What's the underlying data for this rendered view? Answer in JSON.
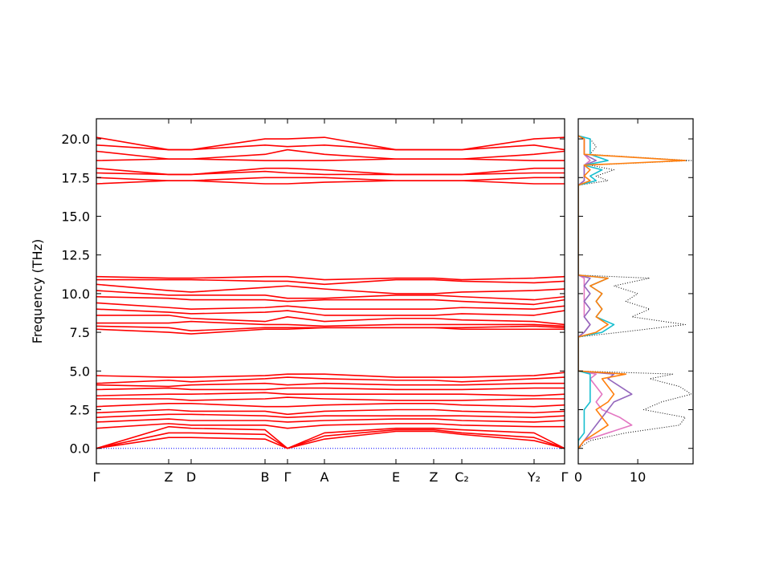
{
  "chart_data": [
    {
      "type": "line",
      "ylabel": "Frequency (THz)",
      "xlim": [
        0,
        1
      ],
      "ylim": [
        -1,
        21.3
      ],
      "zero_line": {
        "value": 0,
        "color": "#0000ff"
      },
      "xticks": [
        {
          "value": 0,
          "label": "Γ"
        },
        {
          "value": 0.1544,
          "label": "Z"
        },
        {
          "value": 0.2024,
          "label": "D"
        },
        {
          "value": 0.3602,
          "label": "B"
        },
        {
          "value": 0.4082,
          "label": "Γ"
        },
        {
          "value": 0.4871,
          "label": "A"
        },
        {
          "value": 0.6398,
          "label": "E"
        },
        {
          "value": 0.7204,
          "label": "Z"
        },
        {
          "value": 0.7805,
          "label": "C₂"
        },
        {
          "value": 0.9348,
          "label": "Y₂"
        },
        {
          "value": 1,
          "label": "Γ"
        }
      ],
      "yticks": [
        {
          "value": 0,
          "label": "0.0"
        },
        2.5,
        {
          "value": 5,
          "label": "5.0"
        },
        7.5,
        {
          "value": 10,
          "label": "10.0"
        },
        12.5,
        {
          "value": 15,
          "label": "15.0"
        },
        17.5,
        {
          "value": 20,
          "label": "20.0"
        }
      ],
      "x": [
        0,
        0.1544,
        0.2024,
        0.3602,
        0.4082,
        0.4871,
        0.6398,
        0.7204,
        0.7805,
        0.9348,
        1
      ],
      "series": [
        {
          "color": "#ff0000",
          "values": [
            20.1,
            19.3,
            19.3,
            20.0,
            20.0,
            20.1,
            19.3,
            19.3,
            19.3,
            20.0,
            20.1
          ]
        },
        {
          "color": "#ff0000",
          "values": [
            19.6,
            19.3,
            19.3,
            19.6,
            19.5,
            19.6,
            19.3,
            19.3,
            19.3,
            19.6,
            19.3
          ]
        },
        {
          "color": "#ff0000",
          "values": [
            19.2,
            18.7,
            18.7,
            19.0,
            19.3,
            19.0,
            18.7,
            18.7,
            18.7,
            19.0,
            19.2
          ]
        },
        {
          "color": "#ff0000",
          "values": [
            18.6,
            18.7,
            18.7,
            18.6,
            18.6,
            18.6,
            18.7,
            18.7,
            18.7,
            18.6,
            18.6
          ]
        },
        {
          "color": "#ff0000",
          "values": [
            18.1,
            17.7,
            17.7,
            18.1,
            18.1,
            18.0,
            17.7,
            17.7,
            17.7,
            18.1,
            18.1
          ]
        },
        {
          "color": "#ff0000",
          "values": [
            17.8,
            17.7,
            17.7,
            17.9,
            17.8,
            17.7,
            17.7,
            17.7,
            17.7,
            17.8,
            17.8
          ]
        },
        {
          "color": "#ff0000",
          "values": [
            17.5,
            17.3,
            17.3,
            17.5,
            17.5,
            17.5,
            17.3,
            17.3,
            17.3,
            17.5,
            17.5
          ]
        },
        {
          "color": "#ff0000",
          "values": [
            17.1,
            17.3,
            17.3,
            17.1,
            17.1,
            17.2,
            17.3,
            17.3,
            17.3,
            17.1,
            17.1
          ]
        },
        {
          "color": "#ff0000",
          "values": [
            11.1,
            11.0,
            11.0,
            11.1,
            11.1,
            10.9,
            11.0,
            11.0,
            10.9,
            11.0,
            11.1
          ]
        },
        {
          "color": "#ff0000",
          "values": [
            10.9,
            10.9,
            10.9,
            10.8,
            10.8,
            10.6,
            10.9,
            10.9,
            10.8,
            10.7,
            10.8
          ]
        },
        {
          "color": "#ff0000",
          "values": [
            10.6,
            10.2,
            10.1,
            10.4,
            10.5,
            10.3,
            10.0,
            10.0,
            10.1,
            10.2,
            10.3
          ]
        },
        {
          "color": "#ff0000",
          "values": [
            10.2,
            9.9,
            9.9,
            9.9,
            9.7,
            9.7,
            9.9,
            9.9,
            9.8,
            9.6,
            9.8
          ]
        },
        {
          "color": "#ff0000",
          "values": [
            9.8,
            9.7,
            9.6,
            9.6,
            9.5,
            9.6,
            9.6,
            9.6,
            9.5,
            9.3,
            9.6
          ]
        },
        {
          "color": "#ff0000",
          "values": [
            9.4,
            9.1,
            9.0,
            9.1,
            9.2,
            9.0,
            9.0,
            9.0,
            9.1,
            9.0,
            9.2
          ]
        },
        {
          "color": "#ff0000",
          "values": [
            9.0,
            8.8,
            8.7,
            8.8,
            8.9,
            8.6,
            8.6,
            8.6,
            8.7,
            8.6,
            8.9
          ]
        },
        {
          "color": "#ff0000",
          "values": [
            8.6,
            8.6,
            8.4,
            8.2,
            8.5,
            8.2,
            8.4,
            8.4,
            8.3,
            8.2,
            8.0
          ]
        },
        {
          "color": "#ff0000",
          "values": [
            8.1,
            8.1,
            8.2,
            8.0,
            8.0,
            7.9,
            8.0,
            8.0,
            8.0,
            8.0,
            7.9
          ]
        },
        {
          "color": "#ff0000",
          "values": [
            7.9,
            7.8,
            7.6,
            7.8,
            7.8,
            7.8,
            7.8,
            7.8,
            7.8,
            7.9,
            7.8
          ]
        },
        {
          "color": "#ff0000",
          "values": [
            7.7,
            7.5,
            7.4,
            7.7,
            7.7,
            7.8,
            7.8,
            7.8,
            7.7,
            7.7,
            7.7
          ]
        },
        {
          "color": "#ff0000",
          "values": [
            4.7,
            4.6,
            4.6,
            4.7,
            4.8,
            4.8,
            4.6,
            4.6,
            4.6,
            4.7,
            4.9
          ]
        },
        {
          "color": "#ff0000",
          "values": [
            4.2,
            4.4,
            4.3,
            4.5,
            4.6,
            4.5,
            4.4,
            4.4,
            4.3,
            4.5,
            4.6
          ]
        },
        {
          "color": "#ff0000",
          "values": [
            4.1,
            4.0,
            4.1,
            4.2,
            4.1,
            4.2,
            4.1,
            4.1,
            4.1,
            4.2,
            4.2
          ]
        },
        {
          "color": "#ff0000",
          "values": [
            3.8,
            3.9,
            3.8,
            3.8,
            3.9,
            3.9,
            3.8,
            3.8,
            3.8,
            3.9,
            3.9
          ]
        },
        {
          "color": "#ff0000",
          "values": [
            3.4,
            3.5,
            3.5,
            3.6,
            3.5,
            3.5,
            3.5,
            3.5,
            3.5,
            3.4,
            3.5
          ]
        },
        {
          "color": "#ff0000",
          "values": [
            3.2,
            3.2,
            3.1,
            3.2,
            3.3,
            3.2,
            3.1,
            3.1,
            3.1,
            3.2,
            3.2
          ]
        },
        {
          "color": "#ff0000",
          "values": [
            2.7,
            2.9,
            2.9,
            2.7,
            2.7,
            2.8,
            2.9,
            2.9,
            2.8,
            2.7,
            2.8
          ]
        },
        {
          "color": "#ff0000",
          "values": [
            2.3,
            2.5,
            2.4,
            2.4,
            2.2,
            2.4,
            2.5,
            2.5,
            2.4,
            2.3,
            2.4
          ]
        },
        {
          "color": "#ff0000",
          "values": [
            2.0,
            2.2,
            2.2,
            2.1,
            2.0,
            2.1,
            2.1,
            2.1,
            2.1,
            2.0,
            2.1
          ]
        },
        {
          "color": "#ff0000",
          "values": [
            1.7,
            1.9,
            1.8,
            1.8,
            1.7,
            1.8,
            1.9,
            1.9,
            1.8,
            1.7,
            1.8
          ]
        },
        {
          "color": "#ff0000",
          "values": [
            1.3,
            1.6,
            1.5,
            1.5,
            1.3,
            1.5,
            1.6,
            1.6,
            1.5,
            1.4,
            1.4
          ]
        },
        {
          "color": "#ff0000",
          "values": [
            0,
            1.4,
            1.3,
            1.2,
            0,
            1.0,
            1.3,
            1.3,
            1.2,
            1.0,
            0
          ]
        },
        {
          "color": "#ff0000",
          "values": [
            0,
            1.0,
            1.0,
            0.9,
            0,
            0.8,
            1.2,
            1.2,
            1.0,
            0.7,
            0
          ]
        },
        {
          "color": "#ff0000",
          "values": [
            0,
            0.7,
            0.7,
            0.6,
            0,
            0.6,
            1.1,
            1.1,
            0.9,
            0.5,
            0
          ]
        }
      ]
    },
    {
      "type": "line",
      "orientation": "horizontal",
      "xlim": [
        0,
        19.3
      ],
      "ylim": [
        -1,
        21.3
      ],
      "xticks": [
        0,
        10
      ],
      "yticks": [
        0,
        2.5,
        5,
        7.5,
        10,
        12.5,
        15,
        17.5,
        20
      ],
      "y": [
        0,
        0.5,
        1,
        1.5,
        2,
        2.5,
        3,
        3.5,
        4,
        4.5,
        4.8,
        5,
        7.2,
        7.5,
        8,
        8.5,
        9,
        9.5,
        10,
        10.5,
        11,
        11.2,
        17,
        17.3,
        17.6,
        18,
        18.3,
        18.6,
        19,
        19.5,
        20,
        20.2
      ],
      "series": [
        {
          "color": "#000000",
          "dash": "1,2",
          "values": [
            0,
            2,
            8,
            17,
            18,
            11,
            14,
            19,
            17,
            12,
            16,
            0,
            0,
            7,
            18,
            9,
            12,
            8,
            10,
            6,
            12,
            0,
            0,
            5,
            3,
            6,
            2,
            19,
            2,
            3,
            2,
            0
          ]
        },
        {
          "color": "#e377c2",
          "values": [
            0,
            1,
            5,
            9,
            7,
            4,
            3,
            4,
            3,
            2,
            3,
            0,
            0,
            1,
            2,
            1,
            1,
            1,
            1,
            1,
            1,
            0,
            0,
            1,
            1,
            1,
            1,
            2,
            1,
            1,
            1,
            0
          ]
        },
        {
          "color": "#9467bd",
          "values": [
            0,
            1,
            2,
            3,
            4,
            5,
            6,
            9,
            7,
            5,
            6,
            0,
            0,
            1,
            2,
            1,
            2,
            1,
            2,
            1,
            2,
            0,
            0,
            1,
            1,
            1,
            1,
            3,
            1,
            1,
            1,
            0
          ]
        },
        {
          "color": "#17becf",
          "values": [
            0,
            0,
            1,
            1,
            1,
            1,
            2,
            2,
            2,
            2,
            2,
            0,
            0,
            4,
            6,
            3,
            4,
            3,
            4,
            2,
            5,
            0,
            0,
            3,
            2,
            4,
            1,
            5,
            2,
            2,
            2,
            0
          ]
        },
        {
          "color": "#ff7f0e",
          "values": [
            0,
            1,
            3,
            5,
            4,
            3,
            5,
            6,
            5,
            4,
            8,
            0,
            0,
            3,
            5,
            3,
            4,
            3,
            4,
            2,
            5,
            0,
            0,
            2,
            1,
            2,
            1,
            18,
            1,
            1,
            1,
            0
          ]
        }
      ]
    }
  ]
}
